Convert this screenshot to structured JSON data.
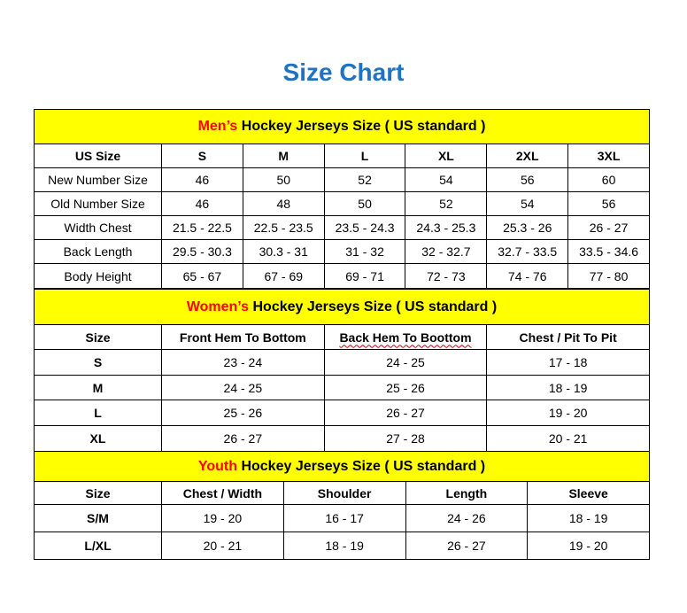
{
  "title": "Size Chart",
  "men": {
    "section_prefix": "Men’s",
    "section_rest": " Hockey Jerseys Size ( US standard )",
    "headers": [
      "US Size",
      "S",
      "M",
      "L",
      "XL",
      "2XL",
      "3XL"
    ],
    "rows": [
      [
        "New Number Size",
        "46",
        "50",
        "52",
        "54",
        "56",
        "60"
      ],
      [
        "Old Number Size",
        "46",
        "48",
        "50",
        "52",
        "54",
        "56"
      ],
      [
        "Width Chest",
        "21.5 - 22.5",
        "22.5 - 23.5",
        "23.5 - 24.3",
        "24.3 - 25.3",
        "25.3 - 26",
        "26 - 27"
      ],
      [
        "Back Length",
        "29.5 - 30.3",
        "30.3 - 31",
        "31 - 32",
        "32 - 32.7",
        "32.7 - 33.5",
        "33.5 - 34.6"
      ],
      [
        "Body Height",
        "65 - 67",
        "67 - 69",
        "69 - 71",
        "72 - 73",
        "74 - 76",
        "77 - 80"
      ]
    ]
  },
  "women": {
    "section_prefix": "Women’s",
    "section_rest": " Hockey Jerseys Size ( US standard )",
    "headers": [
      "Size",
      "Front Hem To Bottom",
      "Back Hem To Boottom",
      "Chest / Pit To Pit"
    ],
    "rows": [
      [
        "S",
        "23 - 24",
        "24 - 25",
        "17 - 18"
      ],
      [
        "M",
        "24 - 25",
        "25 - 26",
        "18 - 19"
      ],
      [
        "L",
        "25 - 26",
        "26 - 27",
        "19 - 20"
      ],
      [
        "XL",
        "26 - 27",
        "27 - 28",
        "20 - 21"
      ]
    ]
  },
  "youth": {
    "section_prefix": "Youth",
    "section_rest": " Hockey Jerseys Size ( US standard )",
    "headers": [
      "Size",
      "Chest / Width",
      "Shoulder",
      "Length",
      "Sleeve"
    ],
    "rows": [
      [
        "S/M",
        "19 - 20",
        "16 - 17",
        "24 - 26",
        "18 - 19"
      ],
      [
        "L/XL",
        "20 - 21",
        "18 - 19",
        "26 - 27",
        "19 - 20"
      ]
    ]
  },
  "colors": {
    "title": "#1f73c2",
    "section_bg": "#ffff00",
    "accent_red": "#ff0000"
  }
}
